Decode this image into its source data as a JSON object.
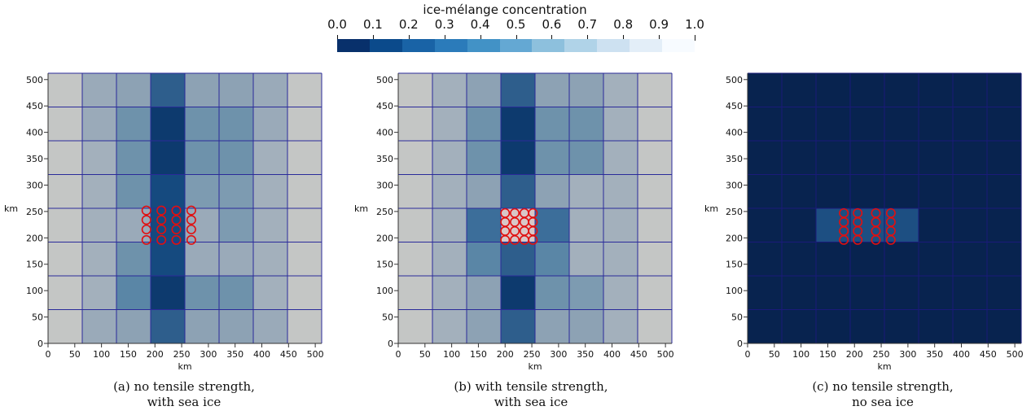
{
  "colorbar": {
    "title": "ice-mélange concentration",
    "ticks": [
      "0.0",
      "0.1",
      "0.2",
      "0.3",
      "0.4",
      "0.5",
      "0.6",
      "0.7",
      "0.8",
      "0.9",
      "1.0"
    ],
    "colors": [
      "#08306b",
      "#0b4a8b",
      "#1963a6",
      "#2b7bba",
      "#4292c6",
      "#64a8d3",
      "#8dc0dd",
      "#b0d3e8",
      "#cde1f1",
      "#e3eef8",
      "#f7fbff"
    ]
  },
  "panels": [
    {
      "id": "a",
      "caption_line1": "(a) no tensile strength,",
      "caption_line2": "with sea ice",
      "xlabel": "km",
      "ylabel": "km",
      "xticks": [
        "0",
        "50",
        "100",
        "150",
        "200",
        "250",
        "300",
        "350",
        "400",
        "450",
        "500"
      ],
      "yticks": [
        "0",
        "50",
        "100",
        "150",
        "200",
        "250",
        "300",
        "350",
        "400",
        "450",
        "500"
      ],
      "grid_columns_km": [
        0,
        64,
        128,
        192,
        256,
        320,
        384,
        448,
        512
      ],
      "grid_rows_km": [
        0,
        64,
        128,
        192,
        256,
        320,
        384,
        448,
        512
      ],
      "cell_colors_top_to_bottom": [
        [
          "#c4c6c5",
          "#9aaab9",
          "#8da2b4",
          "#2e5e8c",
          "#8da2b4",
          "#8da2b4",
          "#9aaab9",
          "#c4c6c5"
        ],
        [
          "#c4c6c5",
          "#9aaab9",
          "#6e92ab",
          "#0d3a6e",
          "#6e92ab",
          "#6e92ab",
          "#9aaab9",
          "#c4c6c5"
        ],
        [
          "#c4c6c5",
          "#a3b0bc",
          "#6e92ab",
          "#0d3a6e",
          "#6e92ab",
          "#6e92ab",
          "#a3b0bc",
          "#c4c6c5"
        ],
        [
          "#c4c6c5",
          "#a3b0bc",
          "#6e92ab",
          "#154a7f",
          "#7d9bb1",
          "#7d9bb1",
          "#a3b0bc",
          "#c4c6c5"
        ],
        [
          "#c4c6c5",
          "#a3b0bc",
          "#9aaab9",
          "#154a7f",
          "#9aaab9",
          "#7d9bb1",
          "#a3b0bc",
          "#c4c6c5"
        ],
        [
          "#c4c6c5",
          "#a3b0bc",
          "#6e92ab",
          "#154a7f",
          "#9aaab9",
          "#9aaab9",
          "#a3b0bc",
          "#c4c6c5"
        ],
        [
          "#c4c6c5",
          "#a3b0bc",
          "#5a86a6",
          "#0d3a6e",
          "#6e92ab",
          "#6e92ab",
          "#a3b0bc",
          "#c4c6c5"
        ],
        [
          "#c4c6c5",
          "#9aaab9",
          "#8da2b4",
          "#2e5e8c",
          "#8da2b4",
          "#8da2b4",
          "#9aaab9",
          "#c4c6c5"
        ]
      ],
      "marker_x_km": [
        184,
        212,
        240,
        268
      ],
      "marker_y_km": [
        196,
        216,
        234,
        252
      ],
      "marker_color": "#e01010",
      "grid_color": "#2a2a9a"
    },
    {
      "id": "b",
      "caption_line1": "(b) with tensile strength,",
      "caption_line2": "with sea ice",
      "xlabel": "km",
      "ylabel": "km",
      "xticks": [
        "0",
        "50",
        "100",
        "150",
        "200",
        "250",
        "300",
        "350",
        "400",
        "450",
        "500"
      ],
      "yticks": [
        "0",
        "50",
        "100",
        "150",
        "200",
        "250",
        "300",
        "350",
        "400",
        "450",
        "500"
      ],
      "grid_columns_km": [
        0,
        64,
        128,
        192,
        256,
        320,
        384,
        448,
        512
      ],
      "grid_rows_km": [
        0,
        64,
        128,
        192,
        256,
        320,
        384,
        448,
        512
      ],
      "cell_colors_top_to_bottom": [
        [
          "#c4c6c5",
          "#a3b0bc",
          "#8da2b4",
          "#2e5e8c",
          "#8da2b4",
          "#8da2b4",
          "#a3b0bc",
          "#c4c6c5"
        ],
        [
          "#c4c6c5",
          "#a3b0bc",
          "#6e92ab",
          "#0d3a6e",
          "#6e92ab",
          "#6e92ab",
          "#a3b0bc",
          "#c4c6c5"
        ],
        [
          "#c4c6c5",
          "#a3b0bc",
          "#6e92ab",
          "#0d3a6e",
          "#6e92ab",
          "#6e92ab",
          "#a3b0bc",
          "#c4c6c5"
        ],
        [
          "#c4c6c5",
          "#a3b0bc",
          "#8da2b4",
          "#2e5e8c",
          "#8da2b4",
          "#a3b0bc",
          "#a3b0bc",
          "#c4c6c5"
        ],
        [
          "#c4c6c5",
          "#a3b0bc",
          "#3c6e9a",
          "#d9c7c7",
          "#3c6e9a",
          "#a3b0bc",
          "#a3b0bc",
          "#c4c6c5"
        ],
        [
          "#c4c6c5",
          "#a3b0bc",
          "#5a86a6",
          "#2e5e8c",
          "#5a86a6",
          "#a3b0bc",
          "#a3b0bc",
          "#c4c6c5"
        ],
        [
          "#c4c6c5",
          "#a3b0bc",
          "#8da2b4",
          "#0d3a6e",
          "#6e92ab",
          "#7d9bb1",
          "#a3b0bc",
          "#c4c6c5"
        ],
        [
          "#c4c6c5",
          "#a3b0bc",
          "#8da2b4",
          "#2e5e8c",
          "#8da2b4",
          "#8da2b4",
          "#a3b0bc",
          "#c4c6c5"
        ]
      ],
      "marker_x_km": [
        200,
        218,
        236,
        252
      ],
      "marker_y_km": [
        196,
        213,
        230,
        247
      ],
      "marker_color": "#e01010",
      "grid_color": "#2a2a9a"
    },
    {
      "id": "c",
      "caption_line1": "(c) no tensile strength,",
      "caption_line2": "no sea ice",
      "xlabel": "km",
      "ylabel": "km",
      "xticks": [
        "0",
        "50",
        "100",
        "150",
        "200",
        "250",
        "300",
        "350",
        "400",
        "450",
        "500"
      ],
      "yticks": [
        "0",
        "50",
        "100",
        "150",
        "200",
        "250",
        "300",
        "350",
        "400",
        "450",
        "500"
      ],
      "grid_columns_km": [
        0,
        64,
        128,
        192,
        256,
        320,
        384,
        448,
        512
      ],
      "grid_rows_km": [
        0,
        64,
        128,
        192,
        256,
        320,
        384,
        448,
        512
      ],
      "cell_colors_top_to_bottom": [
        [
          "#08234f",
          "#08234f",
          "#08234f",
          "#08234f",
          "#08234f",
          "#08234f",
          "#08234f",
          "#08234f"
        ],
        [
          "#08234f",
          "#08234f",
          "#08234f",
          "#08234f",
          "#08234f",
          "#08234f",
          "#08234f",
          "#08234f"
        ],
        [
          "#08234f",
          "#08234f",
          "#08234f",
          "#08234f",
          "#08234f",
          "#08234f",
          "#08234f",
          "#08234f"
        ],
        [
          "#08234f",
          "#08234f",
          "#08234f",
          "#08234f",
          "#08234f",
          "#08234f",
          "#08234f",
          "#08234f"
        ],
        [
          "#08234f",
          "#08234f",
          "#1d4f82",
          "#1d4f82",
          "#1d4f82",
          "#08234f",
          "#08234f",
          "#08234f"
        ],
        [
          "#08234f",
          "#08234f",
          "#08234f",
          "#08234f",
          "#08234f",
          "#08234f",
          "#08234f",
          "#08234f"
        ],
        [
          "#08234f",
          "#08234f",
          "#08234f",
          "#08234f",
          "#08234f",
          "#08234f",
          "#08234f",
          "#08234f"
        ],
        [
          "#08234f",
          "#08234f",
          "#08234f",
          "#08234f",
          "#08234f",
          "#08234f",
          "#08234f",
          "#08234f"
        ]
      ],
      "marker_x_km": [
        180,
        206,
        240,
        268
      ],
      "marker_y_km": [
        196,
        213,
        230,
        247
      ],
      "marker_color": "#e01010",
      "grid_color": "#1a1a7a"
    }
  ]
}
